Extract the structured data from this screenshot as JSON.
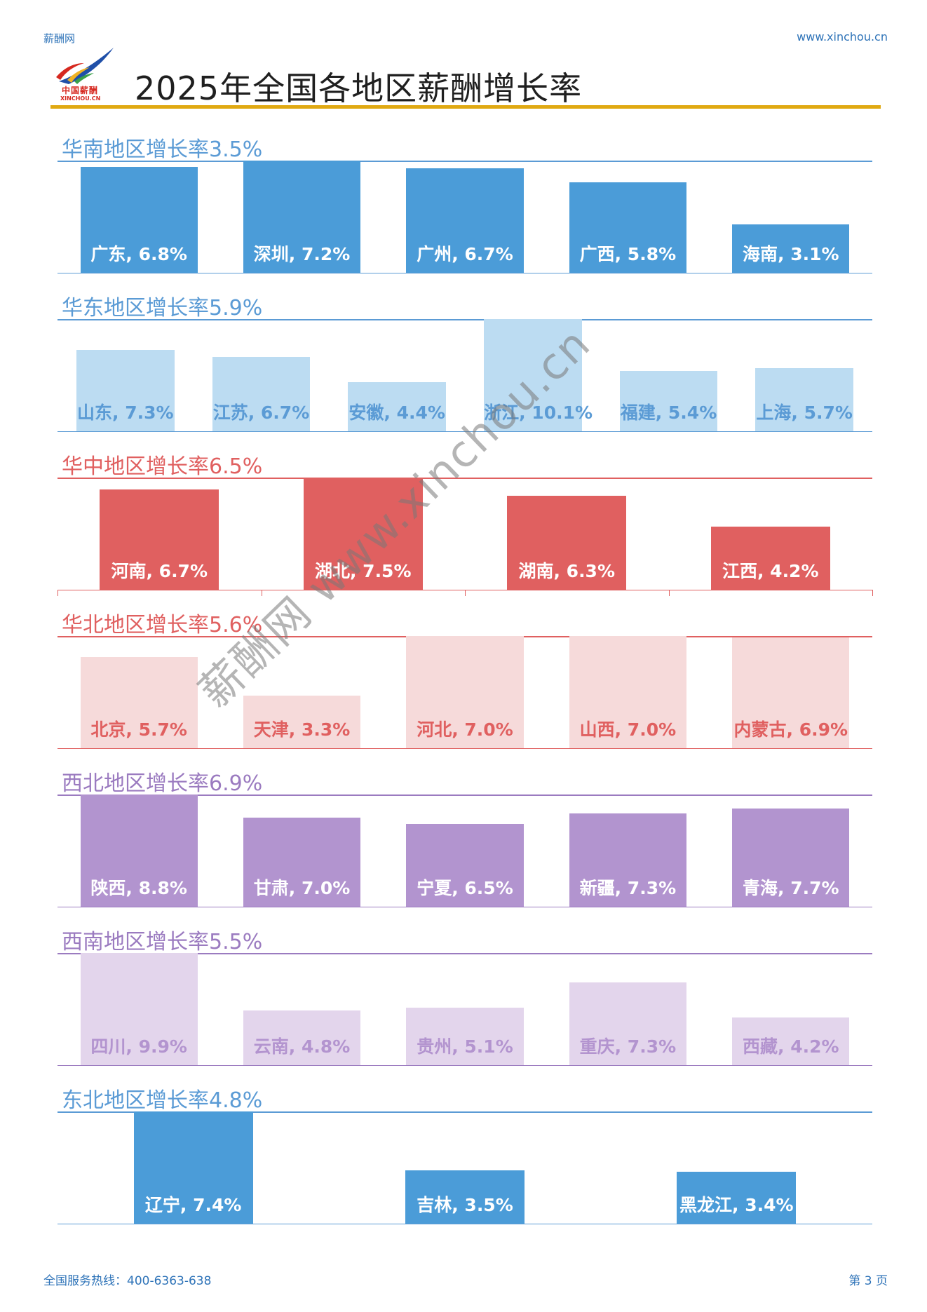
{
  "header": {
    "brand": "薪酬网",
    "site": "www.xinchou.cn",
    "logo_cn": "中国薪酬",
    "logo_en": "XINCHOU.CN",
    "title": "2025年全国各地区薪酬增长率"
  },
  "footer": {
    "hotline": "全国服务热线：400-6363-638",
    "page": "第 3 页"
  },
  "watermark": "薪酬网 www.xinchou.cn",
  "colors": {
    "accent_rule": "#e0a912",
    "brand_blue": "#2e73b8",
    "logo_red": "#d6281f"
  },
  "chart_data": [
    {
      "type": "bar",
      "title": "华南地区增长率3.5%",
      "title_color": "#5b9bd5",
      "rule_color": "#5b9bd5",
      "bar_color": "#4b9cd8",
      "label_color": "#ffffff",
      "categories": [
        "广东",
        "深圳",
        "广州",
        "广西",
        "海南"
      ],
      "values": [
        6.8,
        7.2,
        6.7,
        5.8,
        3.1
      ],
      "labels": [
        "广东, 6.8%",
        "深圳, 7.2%",
        "广州, 6.7%",
        "广西, 5.8%",
        "海南, 3.1%"
      ],
      "unit": "%",
      "ylim": [
        0,
        7.2
      ]
    },
    {
      "type": "bar",
      "title": "华东地区增长率5.9%",
      "title_color": "#5b9bd5",
      "rule_color": "#5b9bd5",
      "bar_color": "#bcdcf2",
      "label_color": "#5b9bd5",
      "categories": [
        "山东",
        "江苏",
        "安徽",
        "浙江",
        "福建",
        "上海"
      ],
      "values": [
        7.3,
        6.7,
        4.4,
        10.1,
        5.4,
        5.7
      ],
      "labels": [
        "山东, 7.3%",
        "江苏, 6.7%",
        "安徽, 4.4%",
        "浙江, 10.1%",
        "福建, 5.4%",
        "上海, 5.7%"
      ],
      "unit": "%",
      "ylim": [
        0,
        10.1
      ]
    },
    {
      "type": "bar",
      "title": "华中地区增长率6.5%",
      "title_color": "#e06060",
      "rule_color": "#e06060",
      "bar_color": "#e06060",
      "label_color": "#ffffff",
      "categories": [
        "河南",
        "湖北",
        "湖南",
        "江西"
      ],
      "values": [
        6.7,
        7.5,
        6.3,
        4.2
      ],
      "labels": [
        "河南, 6.7%",
        "湖北, 7.5%",
        "湖南, 6.3%",
        "江西, 4.2%"
      ],
      "unit": "%",
      "ylim": [
        0,
        7.5
      ]
    },
    {
      "type": "bar",
      "title": "华北地区增长率5.6%",
      "title_color": "#e06060",
      "rule_color": "#e06060",
      "bar_color": "#f6dada",
      "label_color": "#e06060",
      "categories": [
        "北京",
        "天津",
        "河北",
        "山西",
        "内蒙古"
      ],
      "values": [
        5.7,
        3.3,
        7.0,
        7.0,
        6.9
      ],
      "labels": [
        "北京, 5.7%",
        "天津, 3.3%",
        "河北, 7.0%",
        "山西, 7.0%",
        "内蒙古, 6.9%"
      ],
      "unit": "%",
      "ylim": [
        0,
        7.0
      ]
    },
    {
      "type": "bar",
      "title": "西北地区增长率6.9%",
      "title_color": "#9b7bc0",
      "rule_color": "#9b7bc0",
      "bar_color": "#b294cf",
      "label_color": "#ffffff",
      "categories": [
        "陕西",
        "甘肃",
        "宁夏",
        "新疆",
        "青海"
      ],
      "values": [
        8.8,
        7.0,
        6.5,
        7.3,
        7.7
      ],
      "labels": [
        "陕西, 8.8%",
        "甘肃, 7.0%",
        "宁夏, 6.5%",
        "新疆, 7.3%",
        "青海, 7.7%"
      ],
      "unit": "%",
      "ylim": [
        0,
        8.8
      ]
    },
    {
      "type": "bar",
      "title": "西南地区增长率5.5%",
      "title_color": "#9b7bc0",
      "rule_color": "#9b7bc0",
      "bar_color": "#e3d5ec",
      "label_color": "#b394cf",
      "categories": [
        "四川",
        "云南",
        "贵州",
        "重庆",
        "西藏"
      ],
      "values": [
        9.9,
        4.8,
        5.1,
        7.3,
        4.2
      ],
      "labels": [
        "四川, 9.9%",
        "云南, 4.8%",
        "贵州, 5.1%",
        "重庆, 7.3%",
        "西藏, 4.2%"
      ],
      "unit": "%",
      "ylim": [
        0,
        9.9
      ]
    },
    {
      "type": "bar",
      "title": "东北地区增长率4.8%",
      "title_color": "#5b9bd5",
      "rule_color": "#5b9bd5",
      "bar_color": "#4b9cd8",
      "label_color": "#ffffff",
      "categories": [
        "辽宁",
        "吉林",
        "黑龙江"
      ],
      "values": [
        7.4,
        3.5,
        3.4
      ],
      "labels": [
        "辽宁, 7.4%",
        "吉林, 3.5%",
        "黑龙江, 3.4%"
      ],
      "unit": "%",
      "ylim": [
        0,
        7.4
      ]
    }
  ]
}
